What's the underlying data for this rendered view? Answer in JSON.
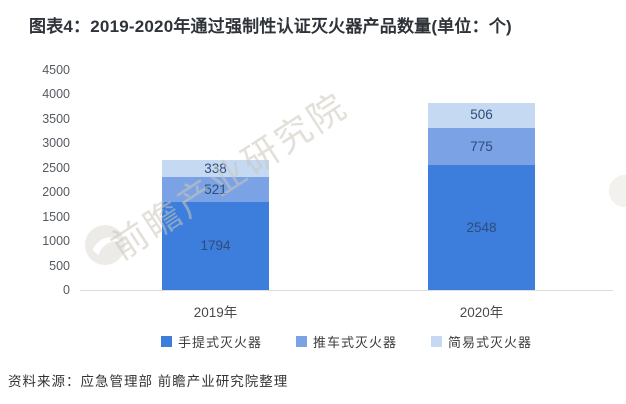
{
  "title": "图表4：2019-2020年通过强制性认证灭火器产品数量(单位：个)",
  "source": "资料来源：应急管理部 前瞻产业研究院整理",
  "watermark": {
    "text": "前瞻产业研究院"
  },
  "chart_data": {
    "type": "bar",
    "stacked": true,
    "title": "图表4：2019-2020年通过强制性认证灭火器产品数量(单位：个)",
    "xlabel": "",
    "ylabel": "",
    "categories": [
      "2019年",
      "2020年"
    ],
    "series": [
      {
        "name": "手提式灭火器",
        "color": "#3d7edc",
        "values": [
          1794,
          2548
        ]
      },
      {
        "name": "推车式灭火器",
        "color": "#7ba2e5",
        "values": [
          521,
          775
        ]
      },
      {
        "name": "简易式灭火器",
        "color": "#c6d9f3",
        "values": [
          338,
          506
        ]
      }
    ],
    "totals": [
      2653,
      3829
    ],
    "ylim": [
      0,
      4500
    ],
    "yticks": [
      0,
      500,
      1000,
      1500,
      2000,
      2500,
      3000,
      3500,
      4000,
      4500
    ],
    "grid": false,
    "legend_position": "bottom",
    "data_label_color": "#2e4c7a"
  }
}
